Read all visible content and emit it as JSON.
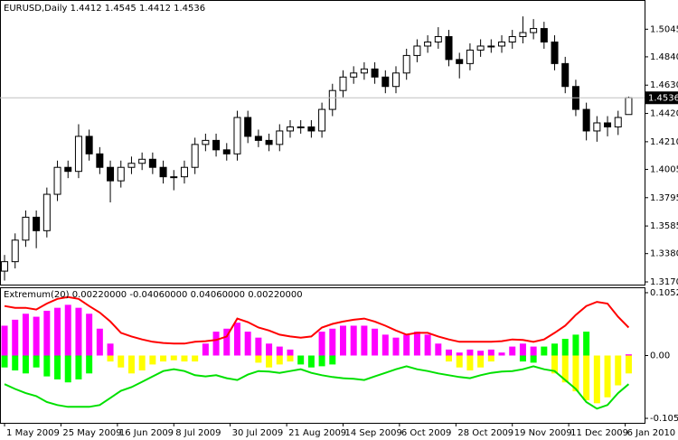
{
  "chart_data": [
    {
      "type": "candlestick",
      "title": "EURUSD,Daily  1.4412 1.4545 1.4412 1.4536",
      "open": [
        1.325,
        1.332,
        1.348,
        1.365,
        1.355,
        1.382,
        1.402,
        1.399,
        1.425,
        1.412,
        1.402,
        1.392,
        1.402,
        1.405,
        1.408,
        1.402,
        1.395,
        1.395,
        1.402,
        1.419,
        1.422,
        1.415,
        1.412,
        1.439,
        1.425,
        1.422,
        1.419,
        1.429,
        1.432,
        1.432,
        1.429,
        1.445,
        1.459,
        1.469,
        1.472,
        1.475,
        1.469,
        1.462,
        1.472,
        1.485,
        1.492,
        1.495,
        1.499,
        1.482,
        1.479,
        1.489,
        1.492,
        1.492,
        1.495,
        1.499,
        1.502,
        1.505,
        1.495,
        1.479,
        1.462,
        1.445,
        1.429,
        1.435,
        1.432,
        1.4412
      ],
      "high": [
        1.337,
        1.353,
        1.37,
        1.37,
        1.387,
        1.407,
        1.407,
        1.434,
        1.43,
        1.417,
        1.407,
        1.407,
        1.41,
        1.413,
        1.413,
        1.407,
        1.4,
        1.407,
        1.424,
        1.427,
        1.427,
        1.42,
        1.444,
        1.444,
        1.43,
        1.427,
        1.434,
        1.437,
        1.437,
        1.437,
        1.45,
        1.464,
        1.474,
        1.477,
        1.48,
        1.48,
        1.474,
        1.477,
        1.49,
        1.497,
        1.5,
        1.506,
        1.504,
        1.487,
        1.494,
        1.497,
        1.497,
        1.5,
        1.504,
        1.514,
        1.512,
        1.51,
        1.5,
        1.484,
        1.467,
        1.45,
        1.44,
        1.44,
        1.444,
        1.4545
      ],
      "low": [
        1.318,
        1.327,
        1.343,
        1.342,
        1.35,
        1.377,
        1.394,
        1.394,
        1.407,
        1.397,
        1.376,
        1.387,
        1.397,
        1.4,
        1.397,
        1.39,
        1.385,
        1.39,
        1.397,
        1.414,
        1.41,
        1.407,
        1.407,
        1.42,
        1.417,
        1.414,
        1.414,
        1.424,
        1.427,
        1.424,
        1.424,
        1.44,
        1.454,
        1.464,
        1.467,
        1.464,
        1.457,
        1.457,
        1.467,
        1.48,
        1.487,
        1.49,
        1.477,
        1.468,
        1.474,
        1.484,
        1.487,
        1.487,
        1.49,
        1.494,
        1.497,
        1.49,
        1.474,
        1.457,
        1.44,
        1.422,
        1.421,
        1.425,
        1.426,
        1.4412
      ],
      "close": [
        1.332,
        1.348,
        1.365,
        1.355,
        1.382,
        1.402,
        1.399,
        1.425,
        1.412,
        1.402,
        1.392,
        1.402,
        1.405,
        1.408,
        1.402,
        1.395,
        1.395,
        1.402,
        1.419,
        1.422,
        1.415,
        1.412,
        1.439,
        1.425,
        1.422,
        1.419,
        1.429,
        1.432,
        1.432,
        1.429,
        1.445,
        1.459,
        1.469,
        1.472,
        1.475,
        1.469,
        1.462,
        1.472,
        1.485,
        1.492,
        1.495,
        1.499,
        1.482,
        1.479,
        1.489,
        1.492,
        1.492,
        1.495,
        1.499,
        1.502,
        1.505,
        1.495,
        1.479,
        1.462,
        1.445,
        1.429,
        1.435,
        1.432,
        1.439,
        1.4536
      ],
      "ylim": [
        1.315,
        1.5255
      ],
      "yticks": [
        1.5045,
        {
          "value": 1.484,
          "label": "1.4840"
        },
        {
          "value": 1.463,
          "label": "1.4630"
        },
        {
          "value": 1.442,
          "label": "1.4420"
        },
        {
          "value": 1.421,
          "label": "1.4210"
        },
        1.4005,
        1.3795,
        1.3585,
        {
          "value": 1.338,
          "label": "1.3380"
        },
        {
          "value": 1.317,
          "label": "1.3170"
        }
      ],
      "xlim": [
        -0.43,
        60.5
      ],
      "xticks": [
        {
          "value": 0,
          "label": "1 May 2009"
        },
        {
          "value": 5.33,
          "label": "25 May 2009"
        },
        {
          "value": 10.67,
          "label": "16 Jun 2009"
        },
        {
          "value": 16,
          "label": "8 Jul 2009"
        },
        {
          "value": 21.33,
          "label": "30 Jul 2009"
        },
        {
          "value": 26.67,
          "label": "21 Aug 2009"
        },
        {
          "value": 32,
          "label": "14 Sep 2009"
        },
        {
          "value": 37.33,
          "label": "6 Oct 2009"
        },
        {
          "value": 42.67,
          "label": "28 Oct 2009"
        },
        {
          "value": 48,
          "label": "19 Nov 2009"
        },
        {
          "value": 53.33,
          "label": "11 Dec 2009"
        },
        {
          "value": 58.67,
          "label": "6 Jan 2010"
        }
      ],
      "grid": false
    },
    {
      "type": "indicator",
      "title": "Extremum(20) 0.00220000 -0.04060000 0.04060000 0.00220000",
      "ylim": [
        -0.1128,
        0.1128
      ],
      "yticks": [
        0.10527,
        {
          "value": 0,
          "label": "0.00"
        },
        -0.10527
      ],
      "series": [
        {
          "type": "bar",
          "color": "#ff00ff",
          "values": [
            0.05,
            0.06,
            0.07,
            0.065,
            0.075,
            0.08,
            0.085,
            0.08,
            0.07,
            0.045,
            0.02,
            null,
            null,
            null,
            null,
            null,
            null,
            null,
            null,
            0.02,
            0.04,
            0.045,
            0.055,
            0.04,
            0.03,
            0.02,
            0.015,
            0.01,
            null,
            null,
            0.04,
            0.045,
            0.05,
            0.05,
            0.05,
            0.045,
            0.035,
            0.03,
            0.035,
            0.04,
            0.035,
            0.02,
            0.01,
            0.005,
            0.01,
            0.008,
            0.01,
            0.005,
            0.015,
            0.02,
            0.015,
            null,
            null,
            null,
            null,
            null,
            null,
            null,
            null,
            0.002
          ]
        },
        {
          "type": "bar",
          "color": "#00ff00",
          "values": [
            -0.02,
            -0.025,
            -0.03,
            -0.02,
            -0.035,
            -0.04,
            -0.045,
            -0.04,
            -0.03,
            null,
            null,
            null,
            null,
            null,
            null,
            null,
            null,
            null,
            null,
            null,
            null,
            null,
            null,
            null,
            null,
            null,
            null,
            null,
            -0.015,
            -0.02,
            -0.018,
            -0.015,
            null,
            null,
            null,
            null,
            null,
            null,
            null,
            null,
            null,
            null,
            null,
            null,
            null,
            null,
            null,
            null,
            null,
            -0.01,
            -0.012,
            0.015,
            0.02,
            0.028,
            0.035,
            0.04,
            null,
            null,
            null,
            null
          ]
        },
        {
          "type": "bar",
          "color": "#ffff00",
          "values": [
            null,
            null,
            null,
            null,
            null,
            null,
            null,
            null,
            null,
            null,
            -0.01,
            -0.02,
            -0.03,
            -0.025,
            -0.015,
            -0.01,
            -0.008,
            -0.01,
            -0.01,
            null,
            null,
            null,
            null,
            null,
            -0.012,
            -0.02,
            -0.015,
            -0.01,
            null,
            null,
            null,
            null,
            null,
            null,
            null,
            null,
            null,
            null,
            null,
            null,
            null,
            null,
            -0.01,
            -0.02,
            -0.025,
            -0.02,
            -0.01,
            null,
            null,
            null,
            null,
            null,
            -0.03,
            -0.045,
            -0.06,
            -0.075,
            -0.08,
            -0.07,
            -0.05,
            -0.03
          ]
        },
        {
          "type": "line",
          "color": "#ff0000",
          "values": [
            0.083,
            0.08,
            0.08,
            0.077,
            0.087,
            0.095,
            0.098,
            0.095,
            0.083,
            0.072,
            0.057,
            0.038,
            0.032,
            0.027,
            0.023,
            0.021,
            0.02,
            0.02,
            0.023,
            0.024,
            0.026,
            0.032,
            0.062,
            0.056,
            0.047,
            0.042,
            0.035,
            0.032,
            0.03,
            0.032,
            0.047,
            0.053,
            0.057,
            0.06,
            0.062,
            0.057,
            0.05,
            0.042,
            0.035,
            0.038,
            0.038,
            0.032,
            0.027,
            0.023,
            0.023,
            0.023,
            0.023,
            0.024,
            0.027,
            0.026,
            0.023,
            0.027,
            0.038,
            0.05,
            0.068,
            0.083,
            0.09,
            0.087,
            0.065,
            0.047
          ]
        },
        {
          "type": "line",
          "color": "#00e000",
          "values": [
            -0.048,
            -0.056,
            -0.063,
            -0.068,
            -0.078,
            -0.083,
            -0.086,
            -0.086,
            -0.086,
            -0.083,
            -0.071,
            -0.059,
            -0.053,
            -0.044,
            -0.035,
            -0.026,
            -0.023,
            -0.026,
            -0.033,
            -0.035,
            -0.033,
            -0.038,
            -0.041,
            -0.032,
            -0.026,
            -0.027,
            -0.029,
            -0.026,
            -0.023,
            -0.029,
            -0.033,
            -0.036,
            -0.038,
            -0.039,
            -0.041,
            -0.035,
            -0.029,
            -0.023,
            -0.018,
            -0.023,
            -0.026,
            -0.03,
            -0.033,
            -0.036,
            -0.038,
            -0.033,
            -0.029,
            -0.027,
            -0.026,
            -0.023,
            -0.018,
            -0.023,
            -0.026,
            -0.041,
            -0.056,
            -0.078,
            -0.089,
            -0.083,
            -0.063,
            -0.048
          ]
        }
      ]
    }
  ]
}
